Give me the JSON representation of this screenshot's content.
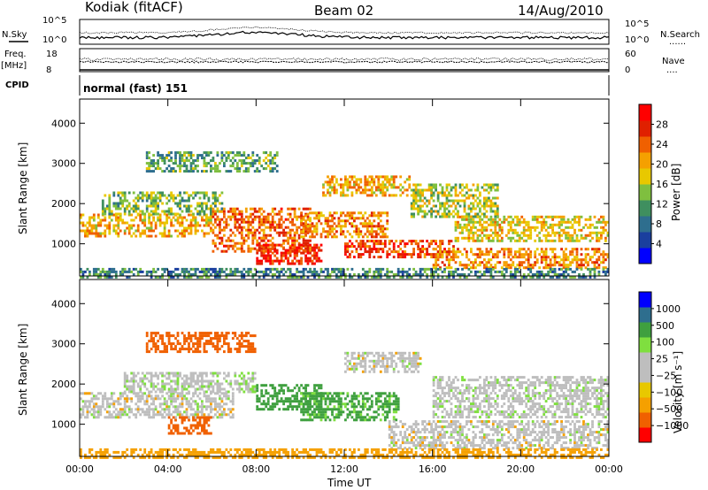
{
  "header": {
    "station": "Kodiak (fitACF)",
    "beam": "Beam 02",
    "date": "14/Aug/2010"
  },
  "noise_panel": {
    "left_label": "N.Sky",
    "right_label": "N.Search",
    "right_legend": "......",
    "left_ticks": [
      "10^5",
      "10^0"
    ],
    "right_ticks": [
      "10^5",
      "10^0"
    ]
  },
  "freq_panel": {
    "left_label_1": "Freq.",
    "left_label_2": "[MHz]",
    "right_label": "Nave",
    "right_legend": "....",
    "left_ticks": [
      "18",
      "8"
    ],
    "right_ticks": [
      "60",
      "0"
    ]
  },
  "cpid": {
    "label": "CPID",
    "value": "normal (fast) 151"
  },
  "colors": {
    "power_scale": [
      "#0000ff",
      "#1a3f9e",
      "#2e6e8e",
      "#3f8f5f",
      "#7fbf3f",
      "#e8c800",
      "#f5a000",
      "#f06000",
      "#e02000",
      "#ff0000"
    ],
    "velocity_scale": [
      "#ff0000",
      "#f06000",
      "#f5a000",
      "#e8c800",
      "#bebebe",
      "#bebebe",
      "#7fdf3f",
      "#3fa03f",
      "#2e6e8e",
      "#0000ff"
    ]
  },
  "chart_data": [
    {
      "type": "heatmap",
      "title": "Power",
      "xlabel": "",
      "ylabel": "Slant Range [km]",
      "x_ticks": [
        "00:00",
        "04:00",
        "08:00",
        "12:00",
        "16:00",
        "20:00",
        "00:00"
      ],
      "y_ticks": [
        1000,
        2000,
        3000,
        4000
      ],
      "ylim": [
        200,
        4600
      ],
      "colorbar": {
        "label": "Power [dB]",
        "ticks": [
          4,
          8,
          12,
          16,
          20,
          24,
          28
        ],
        "range": [
          0,
          32
        ]
      },
      "bands": [
        {
          "hour_start": 0.0,
          "hour_end": 6.0,
          "range_low": 1200,
          "range_high": 1750,
          "power": 20
        },
        {
          "hour_start": 1.0,
          "hour_end": 6.5,
          "range_low": 1750,
          "range_high": 2300,
          "power": 14
        },
        {
          "hour_start": 6.0,
          "hour_end": 10.5,
          "range_low": 800,
          "range_high": 1900,
          "power": 24
        },
        {
          "hour_start": 8.0,
          "hour_end": 11.0,
          "range_low": 500,
          "range_high": 1000,
          "power": 28
        },
        {
          "hour_start": 10.0,
          "hour_end": 14.0,
          "range_low": 1200,
          "range_high": 1800,
          "power": 22
        },
        {
          "hour_start": 11.0,
          "hour_end": 15.0,
          "range_low": 2200,
          "range_high": 2700,
          "power": 20
        },
        {
          "hour_start": 12.0,
          "hour_end": 17.0,
          "range_low": 700,
          "range_high": 1100,
          "power": 26
        },
        {
          "hour_start": 15.0,
          "hour_end": 19.0,
          "range_low": 1700,
          "range_high": 2500,
          "power": 16
        },
        {
          "hour_start": 16.0,
          "hour_end": 24.0,
          "range_low": 400,
          "range_high": 900,
          "power": 22
        },
        {
          "hour_start": 17.0,
          "hour_end": 24.0,
          "range_low": 1100,
          "range_high": 1700,
          "power": 18
        },
        {
          "hour_start": 0.0,
          "hour_end": 24.0,
          "range_low": 200,
          "range_high": 400,
          "power": 10
        },
        {
          "hour_start": 3.0,
          "hour_end": 9.0,
          "range_low": 2800,
          "range_high": 3300,
          "power": 12
        }
      ]
    },
    {
      "type": "heatmap",
      "title": "Velocity",
      "xlabel": "Time UT",
      "ylabel": "Slant Range [km]",
      "x_ticks": [
        "00:00",
        "04:00",
        "08:00",
        "12:00",
        "16:00",
        "20:00",
        "00:00"
      ],
      "y_ticks": [
        1000,
        2000,
        3000,
        4000
      ],
      "ylim": [
        200,
        4600
      ],
      "colorbar": {
        "label": "Velocity [m s⁻¹]",
        "ticks": [
          "1000",
          "500",
          "100",
          "25",
          "−25",
          "−100",
          "−500",
          "−1000"
        ]
      },
      "bands": [
        {
          "hour_start": 0.0,
          "hour_end": 7.0,
          "range_low": 1200,
          "range_high": 1800,
          "velocity": 0
        },
        {
          "hour_start": 2.0,
          "hour_end": 8.0,
          "range_low": 1800,
          "range_high": 2300,
          "velocity": 10
        },
        {
          "hour_start": 8.0,
          "hour_end": 11.0,
          "range_low": 1400,
          "range_high": 2000,
          "velocity": 150
        },
        {
          "hour_start": 10.0,
          "hour_end": 14.5,
          "range_low": 1100,
          "range_high": 1800,
          "velocity": 120
        },
        {
          "hour_start": 12.0,
          "hour_end": 15.5,
          "range_low": 2300,
          "range_high": 2800,
          "velocity": 0
        },
        {
          "hour_start": 14.0,
          "hour_end": 24.0,
          "range_low": 400,
          "range_high": 1100,
          "velocity": 0
        },
        {
          "hour_start": 16.0,
          "hour_end": 24.0,
          "range_low": 1200,
          "range_high": 2200,
          "velocity": 5
        },
        {
          "hour_start": 0.0,
          "hour_end": 24.0,
          "range_low": 200,
          "range_high": 400,
          "velocity": -60
        },
        {
          "hour_start": 3.0,
          "hour_end": 8.0,
          "range_low": 2800,
          "range_high": 3300,
          "velocity": -150
        },
        {
          "hour_start": 4.0,
          "hour_end": 6.0,
          "range_low": 800,
          "range_high": 1200,
          "velocity": -200
        }
      ]
    }
  ]
}
